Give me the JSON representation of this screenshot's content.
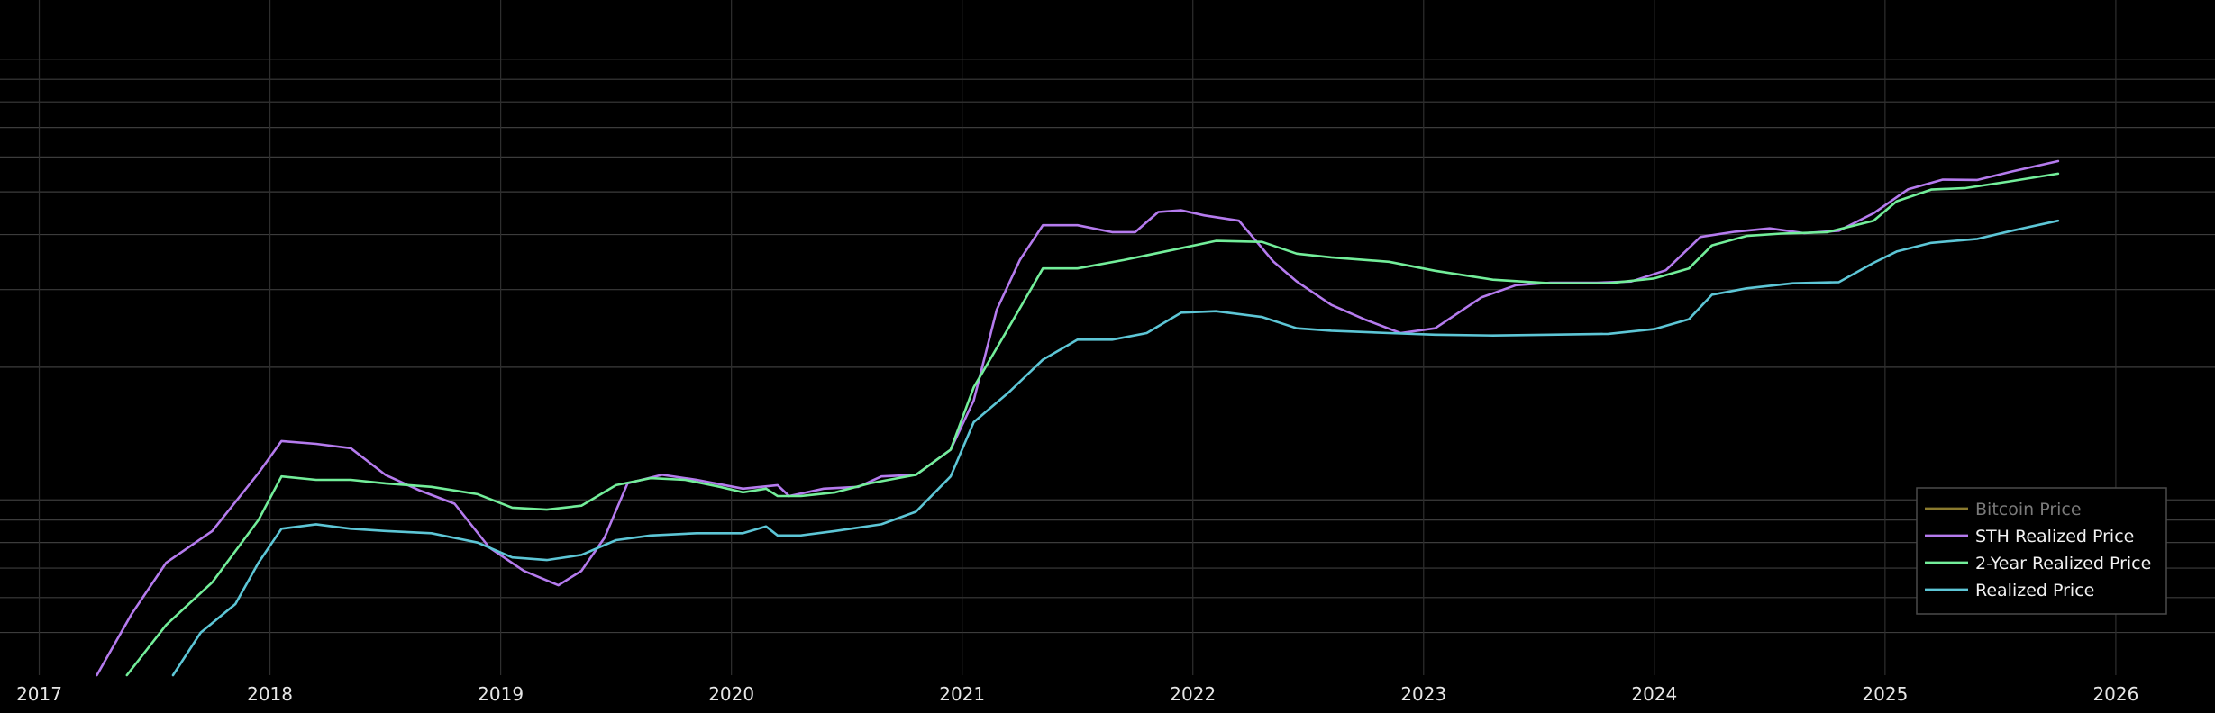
{
  "chart_data": {
    "type": "line",
    "x_ticks": [
      "2017",
      "2018",
      "2019",
      "2020",
      "2021",
      "2022",
      "2023",
      "2024",
      "2025",
      "2026"
    ],
    "x_range": [
      2016.83,
      2026.43
    ],
    "y_scale": "log",
    "y_range_usd": [
      4000,
      130000
    ],
    "y_tick_labels_shown": false,
    "grid": true,
    "legend_position": "bottom-right",
    "background": "#000000",
    "series": [
      {
        "name": "Bitcoin Price",
        "color": "#8a7a2e",
        "legend_dimmed": true,
        "x": [],
        "y": []
      },
      {
        "name": "STH Realized Price",
        "color": "#b57bee",
        "x": [
          2017.25,
          2017.4,
          2017.55,
          2017.75,
          2017.95,
          2018.05,
          2018.2,
          2018.35,
          2018.5,
          2018.65,
          2018.8,
          2018.95,
          2019.1,
          2019.25,
          2019.35,
          2019.45,
          2019.55,
          2019.7,
          2019.85,
          2020.05,
          2020.2,
          2020.25,
          2020.4,
          2020.55,
          2020.65,
          2020.8,
          2020.95,
          2021.05,
          2021.15,
          2021.25,
          2021.35,
          2021.5,
          2021.65,
          2021.75,
          2021.85,
          2021.95,
          2022.05,
          2022.2,
          2022.35,
          2022.45,
          2022.6,
          2022.75,
          2022.9,
          2023.05,
          2023.25,
          2023.4,
          2023.55,
          2023.75,
          2023.9,
          2024.05,
          2024.2,
          2024.35,
          2024.5,
          2024.65,
          2024.8,
          2024.95,
          2025.1,
          2025.25,
          2025.4,
          2025.55,
          2025.75
        ],
        "y": [
          4000,
          5500,
          7200,
          8500,
          11500,
          13600,
          13400,
          13100,
          11400,
          10500,
          9800,
          7800,
          6900,
          6400,
          6900,
          8200,
          10900,
          11400,
          11100,
          10600,
          10800,
          10200,
          10600,
          10700,
          11300,
          11400,
          13000,
          16800,
          27000,
          35000,
          42000,
          42000,
          40500,
          40500,
          45000,
          45400,
          44200,
          43000,
          34700,
          31300,
          27700,
          25600,
          23900,
          24500,
          28800,
          30700,
          31100,
          31100,
          31300,
          33200,
          39500,
          40600,
          41300,
          40300,
          40800,
          44700,
          50700,
          53300,
          53200,
          55600,
          58700
        ]
      },
      {
        "name": "2-Year Realized Price",
        "color": "#73ee9a",
        "x": [
          2017.38,
          2017.55,
          2017.75,
          2017.95,
          2018.05,
          2018.2,
          2018.35,
          2018.5,
          2018.7,
          2018.9,
          2019.05,
          2019.2,
          2019.35,
          2019.5,
          2019.65,
          2019.8,
          2019.95,
          2020.05,
          2020.15,
          2020.2,
          2020.3,
          2020.45,
          2020.6,
          2020.8,
          2020.95,
          2021.05,
          2021.2,
          2021.35,
          2021.5,
          2021.7,
          2021.9,
          2022.1,
          2022.3,
          2022.45,
          2022.6,
          2022.85,
          2023.05,
          2023.3,
          2023.55,
          2023.8,
          2024.0,
          2024.15,
          2024.25,
          2024.4,
          2024.55,
          2024.75,
          2024.95,
          2025.05,
          2025.2,
          2025.35,
          2025.55,
          2025.75
        ],
        "y": [
          4000,
          5200,
          6500,
          9000,
          11300,
          11100,
          11100,
          10900,
          10700,
          10300,
          9600,
          9500,
          9700,
          10800,
          11200,
          11100,
          10700,
          10400,
          10600,
          10200,
          10200,
          10400,
          10900,
          11400,
          13000,
          18000,
          24500,
          33500,
          33500,
          35000,
          36800,
          38700,
          38500,
          36200,
          35500,
          34700,
          33100,
          31600,
          31000,
          31000,
          31800,
          33500,
          37800,
          39700,
          40200,
          40500,
          43000,
          47600,
          50600,
          51000,
          52900,
          55000
        ]
      },
      {
        "name": "Realized Price",
        "color": "#5dc6d6",
        "x": [
          2017.58,
          2017.7,
          2017.85,
          2017.95,
          2018.05,
          2018.2,
          2018.35,
          2018.5,
          2018.7,
          2018.9,
          2019.05,
          2019.2,
          2019.35,
          2019.5,
          2019.65,
          2019.85,
          2020.05,
          2020.15,
          2020.2,
          2020.3,
          2020.45,
          2020.65,
          2020.8,
          2020.95,
          2021.05,
          2021.2,
          2021.35,
          2021.5,
          2021.65,
          2021.8,
          2021.95,
          2022.1,
          2022.3,
          2022.45,
          2022.6,
          2022.85,
          2023.05,
          2023.3,
          2023.55,
          2023.8,
          2024.0,
          2024.15,
          2024.25,
          2024.4,
          2024.6,
          2024.8,
          2024.95,
          2025.05,
          2025.2,
          2025.4,
          2025.55,
          2025.75
        ],
        "y": [
          4000,
          5000,
          5800,
          7200,
          8600,
          8800,
          8600,
          8500,
          8400,
          8000,
          7400,
          7300,
          7500,
          8100,
          8300,
          8400,
          8400,
          8700,
          8300,
          8300,
          8500,
          8800,
          9400,
          11300,
          15000,
          17500,
          20800,
          23100,
          23100,
          23900,
          26600,
          26800,
          26000,
          24500,
          24200,
          23900,
          23700,
          23600,
          23700,
          23800,
          24400,
          25700,
          29200,
          30200,
          31000,
          31200,
          34500,
          36600,
          38300,
          39100,
          40800,
          43000
        ]
      }
    ]
  }
}
